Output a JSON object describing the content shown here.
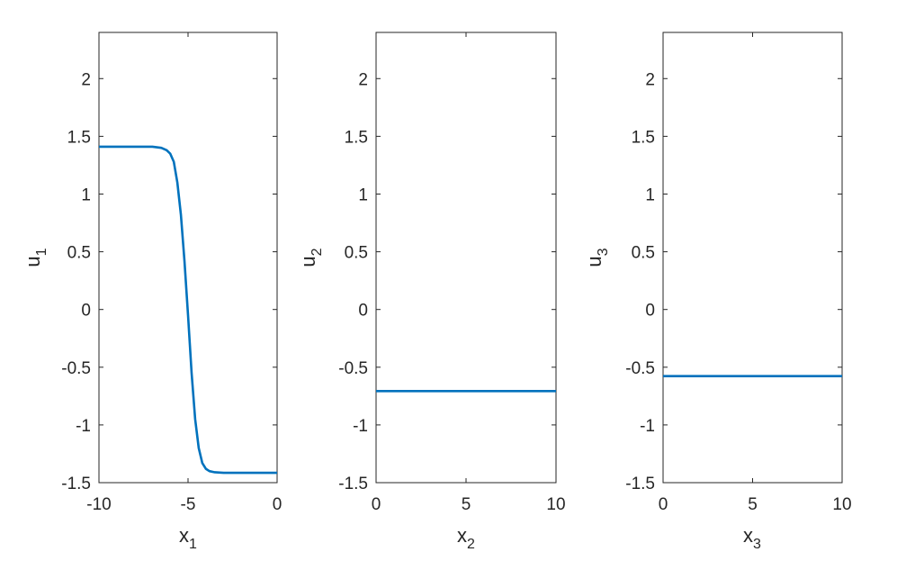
{
  "chart_data": [
    {
      "type": "line",
      "xlabel": "x",
      "xlabel_sub": "1",
      "ylabel": "u",
      "ylabel_sub": "1",
      "xlim": [
        -10,
        0
      ],
      "ylim": [
        -1.5,
        2.4
      ],
      "xticks": [
        -10,
        -5,
        0
      ],
      "xtick_labels": [
        "-10",
        "-5",
        "0"
      ],
      "yticks": [
        -1.5,
        -1,
        -0.5,
        0,
        0.5,
        1,
        1.5,
        2
      ],
      "ytick_labels": [
        "-1.5",
        "-1",
        "-0.5",
        "0",
        "0.5",
        "1",
        "1.5",
        "2"
      ],
      "color": "#0072BD",
      "grid": false,
      "series": [
        {
          "x": [
            -10,
            -9,
            -8,
            -7,
            -6.5,
            -6.2,
            -6,
            -5.8,
            -5.6,
            -5.4,
            -5.2,
            -5,
            -4.8,
            -4.6,
            -4.4,
            -4.2,
            -4,
            -3.8,
            -3.5,
            -3,
            -2,
            -1,
            0
          ],
          "values": [
            1.41,
            1.41,
            1.41,
            1.41,
            1.4,
            1.38,
            1.35,
            1.28,
            1.1,
            0.82,
            0.42,
            -0.05,
            -0.55,
            -0.95,
            -1.2,
            -1.33,
            -1.38,
            -1.4,
            -1.41,
            -1.415,
            -1.415,
            -1.415,
            -1.415
          ]
        }
      ]
    },
    {
      "type": "line",
      "xlabel": "x",
      "xlabel_sub": "2",
      "ylabel": "u",
      "ylabel_sub": "2",
      "xlim": [
        0,
        10
      ],
      "ylim": [
        -1.5,
        2.4
      ],
      "xticks": [
        0,
        5,
        10
      ],
      "xtick_labels": [
        "0",
        "5",
        "10"
      ],
      "yticks": [
        -1.5,
        -1,
        -0.5,
        0,
        0.5,
        1,
        1.5,
        2
      ],
      "ytick_labels": [
        "-1.5",
        "-1",
        "-0.5",
        "0",
        "0.5",
        "1",
        "1.5",
        "2"
      ],
      "color": "#0072BD",
      "grid": false,
      "series": [
        {
          "x": [
            0,
            10
          ],
          "values": [
            -0.707,
            -0.707
          ]
        }
      ]
    },
    {
      "type": "line",
      "xlabel": "x",
      "xlabel_sub": "3",
      "ylabel": "u",
      "ylabel_sub": "3",
      "xlim": [
        0,
        10
      ],
      "ylim": [
        -1.5,
        2.4
      ],
      "xticks": [
        0,
        5,
        10
      ],
      "xtick_labels": [
        "0",
        "5",
        "10"
      ],
      "yticks": [
        -1.5,
        -1,
        -0.5,
        0,
        0.5,
        1,
        1.5,
        2
      ],
      "ytick_labels": [
        "-1.5",
        "-1",
        "-0.5",
        "0",
        "0.5",
        "1",
        "1.5",
        "2"
      ],
      "color": "#0072BD",
      "grid": false,
      "series": [
        {
          "x": [
            0,
            10
          ],
          "values": [
            -0.577,
            -0.577
          ]
        }
      ]
    }
  ]
}
